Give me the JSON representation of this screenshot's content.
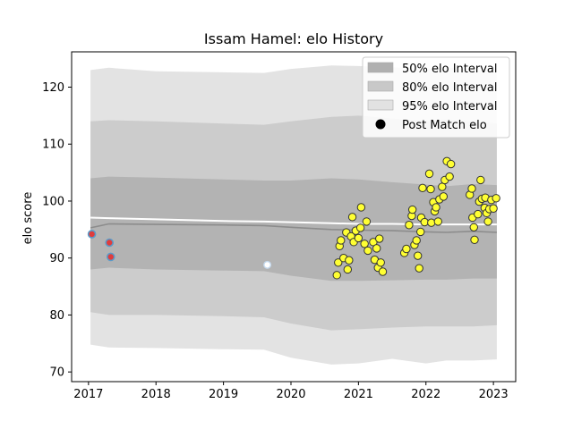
{
  "chart_data": {
    "type": "scatter",
    "title": "Issam Hamel: elo History",
    "xlabel": "",
    "ylabel": "elo score",
    "xlim": [
      2016.75,
      2023.33
    ],
    "ylim": [
      68.3,
      126.2
    ],
    "x_ticks": [
      2017,
      2018,
      2019,
      2020,
      2021,
      2022,
      2023
    ],
    "y_ticks": [
      70,
      80,
      90,
      100,
      110,
      120
    ],
    "legend": {
      "position": "top-right",
      "entries": [
        {
          "label": "50% elo Interval",
          "color": "#b0b0b0"
        },
        {
          "label": "80% elo Interval",
          "color": "#c8c8c8"
        },
        {
          "label": "95% elo Interval",
          "color": "#e2e2e2"
        },
        {
          "label": "Post Match elo",
          "color": "#000000"
        }
      ]
    },
    "colors": {
      "band_50": "#b3b3b3",
      "band_80": "#cccccc",
      "band_95": "#e3e3e3",
      "mean_line": "#8c8c8c",
      "reference_line": "#ffffff",
      "point_fill": "#ffff33",
      "point_edge": "#333333",
      "early_fill": "#e03c3c",
      "early_edge": "#5a9bc9"
    },
    "bands": {
      "x": [
        2017.03,
        2017.3,
        2018.0,
        2019.0,
        2019.6,
        2020.0,
        2020.6,
        2021.0,
        2021.5,
        2022.0,
        2022.3,
        2022.7,
        2023.05
      ],
      "p95_upper": [
        123.0,
        123.4,
        122.8,
        122.6,
        122.5,
        123.2,
        123.8,
        123.7,
        123.5,
        123.2,
        123.5,
        123.0,
        122.8
      ],
      "p80_upper": [
        114.0,
        114.2,
        114.0,
        113.6,
        113.4,
        114.0,
        114.8,
        115.0,
        114.5,
        114.0,
        114.3,
        114.0,
        113.6
      ],
      "p50_upper": [
        104.0,
        104.3,
        104.1,
        103.8,
        103.6,
        103.6,
        104.0,
        103.8,
        103.3,
        102.9,
        102.6,
        103.0,
        102.8
      ],
      "mean": [
        95.3,
        96.0,
        95.9,
        95.8,
        95.7,
        95.4,
        95.0,
        94.9,
        94.8,
        94.6,
        94.5,
        94.7,
        94.5
      ],
      "p50_lower": [
        88.0,
        88.3,
        88.0,
        87.8,
        87.7,
        86.9,
        86.0,
        86.0,
        86.1,
        86.2,
        86.2,
        86.4,
        86.4
      ],
      "p80_lower": [
        80.5,
        80.0,
        80.0,
        79.8,
        79.6,
        78.5,
        77.3,
        77.5,
        77.8,
        78.0,
        78.0,
        78.0,
        78.2
      ],
      "p95_lower": [
        74.8,
        74.3,
        74.2,
        74.0,
        73.9,
        72.5,
        71.3,
        71.5,
        72.3,
        71.5,
        72.0,
        72.0,
        72.2
      ],
      "reference": [
        97.1,
        97.0,
        96.8,
        96.5,
        96.4,
        96.3,
        96.1,
        96.0,
        96.0,
        95.9,
        95.9,
        95.9,
        95.9
      ]
    },
    "early_points": [
      {
        "x": 2017.05,
        "y": 94.2
      },
      {
        "x": 2017.31,
        "y": 92.7
      },
      {
        "x": 2017.33,
        "y": 90.2
      }
    ],
    "gap_points": [
      {
        "x": 2019.65,
        "y": 88.8
      }
    ],
    "points": [
      {
        "x": 2020.68,
        "y": 87.0
      },
      {
        "x": 2020.7,
        "y": 89.2
      },
      {
        "x": 2020.72,
        "y": 92.1
      },
      {
        "x": 2020.74,
        "y": 93.1
      },
      {
        "x": 2020.78,
        "y": 90.0
      },
      {
        "x": 2020.82,
        "y": 94.5
      },
      {
        "x": 2020.84,
        "y": 88.0
      },
      {
        "x": 2020.86,
        "y": 89.6
      },
      {
        "x": 2020.89,
        "y": 93.8
      },
      {
        "x": 2020.91,
        "y": 97.2
      },
      {
        "x": 2020.93,
        "y": 92.8
      },
      {
        "x": 2020.96,
        "y": 94.8
      },
      {
        "x": 2021.0,
        "y": 93.5
      },
      {
        "x": 2021.03,
        "y": 95.3
      },
      {
        "x": 2021.04,
        "y": 98.9
      },
      {
        "x": 2021.09,
        "y": 92.5
      },
      {
        "x": 2021.12,
        "y": 96.4
      },
      {
        "x": 2021.14,
        "y": 91.3
      },
      {
        "x": 2021.22,
        "y": 92.8
      },
      {
        "x": 2021.24,
        "y": 89.7
      },
      {
        "x": 2021.27,
        "y": 91.7
      },
      {
        "x": 2021.29,
        "y": 88.3
      },
      {
        "x": 2021.31,
        "y": 93.4
      },
      {
        "x": 2021.33,
        "y": 89.2
      },
      {
        "x": 2021.36,
        "y": 87.6
      },
      {
        "x": 2021.68,
        "y": 90.9
      },
      {
        "x": 2021.71,
        "y": 91.6
      },
      {
        "x": 2021.75,
        "y": 95.8
      },
      {
        "x": 2021.79,
        "y": 97.4
      },
      {
        "x": 2021.8,
        "y": 98.5
      },
      {
        "x": 2021.83,
        "y": 92.3
      },
      {
        "x": 2021.86,
        "y": 93.1
      },
      {
        "x": 2021.88,
        "y": 90.4
      },
      {
        "x": 2021.9,
        "y": 88.2
      },
      {
        "x": 2021.92,
        "y": 94.6
      },
      {
        "x": 2021.93,
        "y": 97.1
      },
      {
        "x": 2021.95,
        "y": 102.3
      },
      {
        "x": 2021.98,
        "y": 96.3
      },
      {
        "x": 2022.05,
        "y": 104.8
      },
      {
        "x": 2022.07,
        "y": 102.1
      },
      {
        "x": 2022.08,
        "y": 96.2
      },
      {
        "x": 2022.11,
        "y": 99.8
      },
      {
        "x": 2022.13,
        "y": 98.2
      },
      {
        "x": 2022.15,
        "y": 98.9
      },
      {
        "x": 2022.18,
        "y": 96.4
      },
      {
        "x": 2022.2,
        "y": 100.3
      },
      {
        "x": 2022.24,
        "y": 102.5
      },
      {
        "x": 2022.26,
        "y": 100.8
      },
      {
        "x": 2022.28,
        "y": 103.7
      },
      {
        "x": 2022.31,
        "y": 107.0
      },
      {
        "x": 2022.35,
        "y": 104.3
      },
      {
        "x": 2022.37,
        "y": 106.5
      },
      {
        "x": 2022.65,
        "y": 101.1
      },
      {
        "x": 2022.68,
        "y": 102.2
      },
      {
        "x": 2022.69,
        "y": 97.1
      },
      {
        "x": 2022.71,
        "y": 95.4
      },
      {
        "x": 2022.72,
        "y": 93.2
      },
      {
        "x": 2022.77,
        "y": 97.7
      },
      {
        "x": 2022.79,
        "y": 99.9
      },
      {
        "x": 2022.81,
        "y": 103.7
      },
      {
        "x": 2022.83,
        "y": 100.4
      },
      {
        "x": 2022.87,
        "y": 98.8
      },
      {
        "x": 2022.88,
        "y": 100.6
      },
      {
        "x": 2022.9,
        "y": 97.9
      },
      {
        "x": 2022.92,
        "y": 96.4
      },
      {
        "x": 2022.94,
        "y": 98.6
      },
      {
        "x": 2022.97,
        "y": 100.2
      },
      {
        "x": 2023.0,
        "y": 98.7
      },
      {
        "x": 2023.04,
        "y": 100.5
      }
    ]
  }
}
